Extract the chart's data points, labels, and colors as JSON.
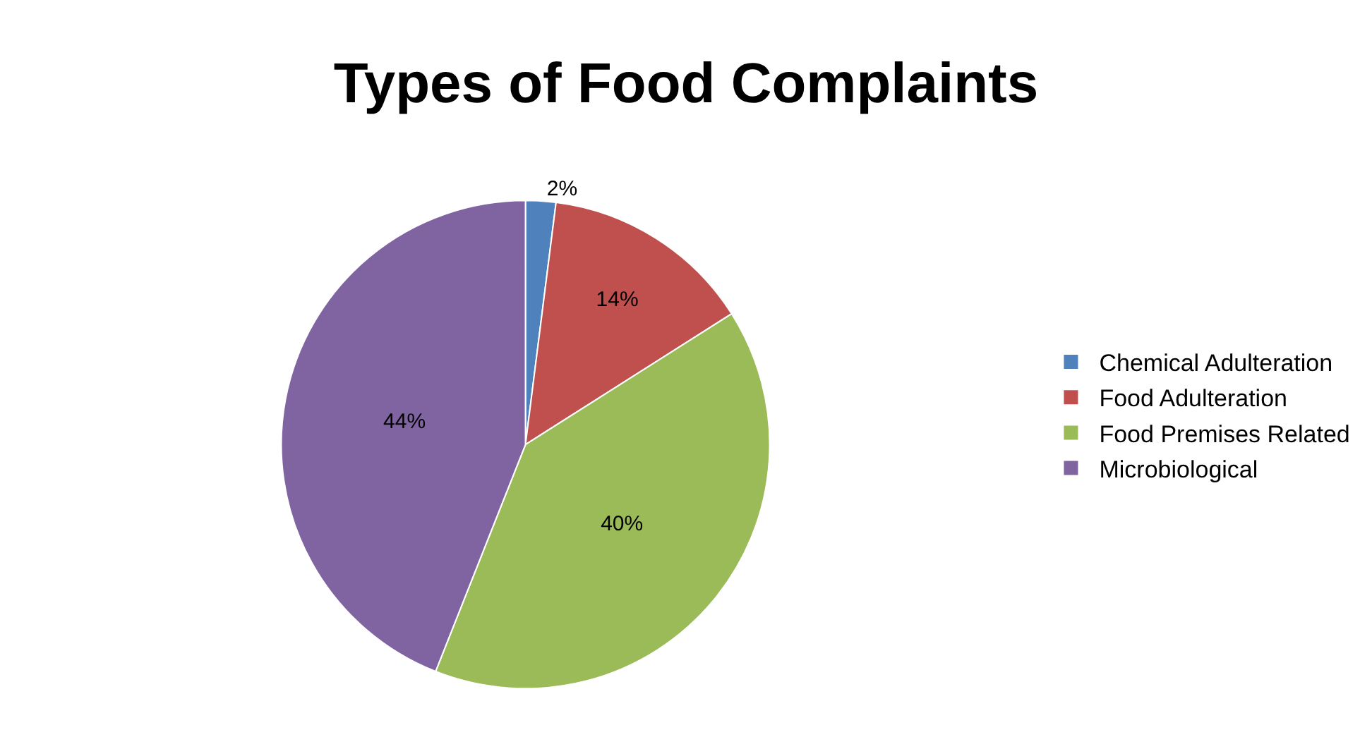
{
  "chart_data": {
    "type": "pie",
    "title": "Types of Food Complaints",
    "categories": [
      "Chemical Adulteration",
      "Food Adulteration",
      "Food Premises Related",
      "Microbiological"
    ],
    "values": [
      2,
      14,
      40,
      44
    ],
    "value_labels": [
      "2%",
      "14%",
      "40%",
      "44%"
    ],
    "colors": [
      "#4f81bd",
      "#c0504d",
      "#9bbb59",
      "#8064a2"
    ],
    "legend": "right"
  }
}
